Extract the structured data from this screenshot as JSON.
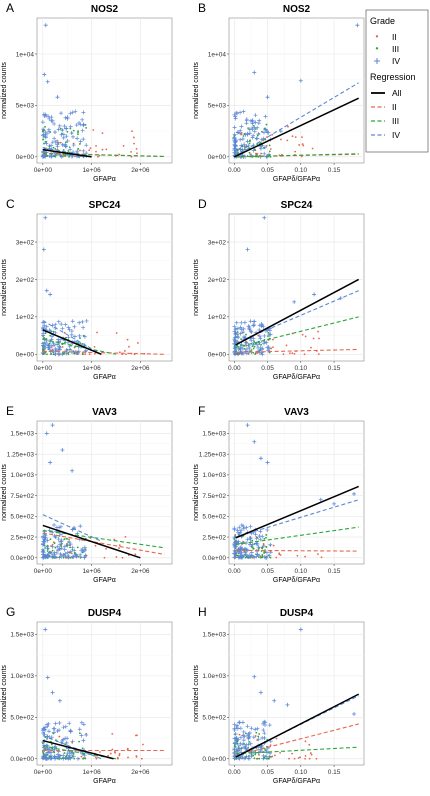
{
  "colors": {
    "II": "#e8664f",
    "III": "#2aa63a",
    "IV": "#5b87d6",
    "All": "#000000",
    "grid": "#e6e6e6",
    "frame": "#8c8c8c"
  },
  "legend": {
    "grade_title": "Grade",
    "grades": [
      "II",
      "III",
      "IV"
    ],
    "regression_title": "Regression",
    "regressions": [
      "All",
      "II",
      "III",
      "IV"
    ]
  },
  "chart_data": [
    {
      "letter": "A",
      "title": "NOS2",
      "type": "scatter",
      "xlabel": "GFAPα",
      "ylabel": "normalized counts",
      "xlim": [
        -120000,
        2650000
      ],
      "ylim": [
        -600,
        13500
      ],
      "xticks": [
        0,
        1000000,
        2000000
      ],
      "xtick_labels": [
        "0e+00",
        "1e+06",
        "2e+06"
      ],
      "yticks": [
        0,
        5000,
        10000
      ],
      "ytick_labels": [
        "0e+00",
        "5e+03",
        "1e+04"
      ],
      "regression": {
        "All": [
          [
            0,
            700
          ],
          [
            1000000,
            0
          ]
        ],
        "II": [
          [
            0,
            350
          ],
          [
            2500000,
            30
          ]
        ],
        "III": [
          [
            0,
            300
          ],
          [
            2500000,
            40
          ]
        ],
        "IV": [
          [
            0,
            900
          ],
          [
            1000000,
            0
          ]
        ]
      },
      "outliers_IV": [
        [
          60000,
          12800
        ],
        [
          30000,
          8000
        ],
        [
          100000,
          7300
        ],
        [
          300000,
          5800
        ],
        [
          180000,
          3500
        ],
        [
          50000,
          4100
        ],
        [
          250000,
          2400
        ]
      ]
    },
    {
      "letter": "B",
      "title": "NOS2",
      "type": "scatter",
      "xlabel": "GFAPδ/GFAPα",
      "ylabel": "normalized counts",
      "xlim": [
        -0.008,
        0.195
      ],
      "ylim": [
        -600,
        13500
      ],
      "xticks": [
        0,
        0.05,
        0.1,
        0.15
      ],
      "xtick_labels": [
        "0.00",
        "0.05",
        "0.10",
        "0.15"
      ],
      "yticks": [
        0,
        5000,
        10000
      ],
      "ytick_labels": [
        "0e+00",
        "5e+03",
        "1e+04"
      ],
      "regression": {
        "All": [
          [
            0,
            0
          ],
          [
            0.187,
            5700
          ]
        ],
        "II": [
          [
            0,
            0
          ],
          [
            0.187,
            250
          ]
        ],
        "III": [
          [
            0,
            0
          ],
          [
            0.187,
            300
          ]
        ],
        "IV": [
          [
            0,
            0
          ],
          [
            0.187,
            7200
          ]
        ]
      },
      "outliers_IV": [
        [
          0.185,
          12800
        ],
        [
          0.03,
          8200
        ],
        [
          0.1,
          7400
        ],
        [
          0.05,
          5800
        ],
        [
          0.025,
          3500
        ],
        [
          0.07,
          2500
        ],
        [
          0.02,
          1500
        ]
      ]
    },
    {
      "letter": "C",
      "title": "SPC24",
      "type": "scatter",
      "xlabel": "GFAPα",
      "ylabel": "normalized counts",
      "xlim": [
        -120000,
        2650000
      ],
      "ylim": [
        -18,
        375
      ],
      "xticks": [
        0,
        1000000,
        2000000
      ],
      "xtick_labels": [
        "0e+00",
        "1e+06",
        "2e+06"
      ],
      "yticks": [
        0,
        100,
        200,
        300
      ],
      "ytick_labels": [
        "0e+00",
        "1e+02",
        "2e+02",
        "3e+02"
      ],
      "regression": {
        "All": [
          [
            0,
            65
          ],
          [
            1200000,
            0
          ]
        ],
        "II": [
          [
            0,
            8
          ],
          [
            2500000,
            0
          ]
        ],
        "III": [
          [
            0,
            40
          ],
          [
            1500000,
            0
          ]
        ],
        "IV": [
          [
            0,
            90
          ],
          [
            1200000,
            0
          ]
        ]
      },
      "outliers_IV": [
        [
          50000,
          365
        ],
        [
          20000,
          280
        ],
        [
          80000,
          170
        ],
        [
          150000,
          160
        ]
      ]
    },
    {
      "letter": "D",
      "title": "SPC24",
      "type": "scatter",
      "xlabel": "GFAPδ/GFAPα",
      "ylabel": "normalized counts",
      "xlim": [
        -0.008,
        0.195
      ],
      "ylim": [
        -18,
        375
      ],
      "xticks": [
        0,
        0.05,
        0.1,
        0.15
      ],
      "xtick_labels": [
        "0.00",
        "0.05",
        "0.10",
        "0.15"
      ],
      "yticks": [
        0,
        100,
        200,
        300
      ],
      "ytick_labels": [
        "0e+00",
        "1e+02",
        "2e+02",
        "3e+02"
      ],
      "regression": {
        "All": [
          [
            0.002,
            25
          ],
          [
            0.187,
            200
          ]
        ],
        "II": [
          [
            0.002,
            5
          ],
          [
            0.187,
            13
          ]
        ],
        "III": [
          [
            0.002,
            18
          ],
          [
            0.187,
            100
          ]
        ],
        "IV": [
          [
            0.002,
            30
          ],
          [
            0.187,
            170
          ]
        ]
      },
      "outliers_IV": [
        [
          0.045,
          365
        ],
        [
          0.02,
          280
        ],
        [
          0.12,
          160
        ],
        [
          0.16,
          150
        ],
        [
          0.09,
          140
        ]
      ]
    },
    {
      "letter": "E",
      "title": "VAV3",
      "type": "scatter",
      "xlabel": "GFAPα",
      "ylabel": "normalized counts",
      "xlim": [
        -120000,
        2650000
      ],
      "ylim": [
        -75,
        1650
      ],
      "xticks": [
        0,
        1000000,
        2000000
      ],
      "xtick_labels": [
        "0e+00",
        "1e+06",
        "2e+06"
      ],
      "yticks": [
        0,
        250,
        500,
        750,
        1000,
        1250,
        1500
      ],
      "ytick_labels": [
        "0.0e+00",
        "2.5e+02",
        "5.0e+02",
        "7.5e+02",
        "1.0e+03",
        "1.25e+03",
        "1.5e+03"
      ],
      "regression": {
        "All": [
          [
            0,
            390
          ],
          [
            2000000,
            0
          ]
        ],
        "II": [
          [
            0,
            300
          ],
          [
            2500000,
            40
          ]
        ],
        "III": [
          [
            0,
            330
          ],
          [
            2500000,
            120
          ]
        ],
        "IV": [
          [
            0,
            520
          ],
          [
            1200000,
            200
          ]
        ]
      },
      "outliers_IV": [
        [
          200000,
          1600
        ],
        [
          80000,
          1500
        ],
        [
          400000,
          1300
        ],
        [
          150000,
          1150
        ],
        [
          600000,
          1050
        ]
      ]
    },
    {
      "letter": "F",
      "title": "VAV3",
      "type": "scatter",
      "xlabel": "GFAPδ/GFAPα",
      "ylabel": "normalized counts",
      "xlim": [
        -0.008,
        0.195
      ],
      "ylim": [
        -75,
        1650
      ],
      "xticks": [
        0,
        0.05,
        0.1,
        0.15
      ],
      "xtick_labels": [
        "0.00",
        "0.05",
        "0.10",
        "0.15"
      ],
      "yticks": [
        0,
        250,
        500,
        750,
        1000,
        1250,
        1500
      ],
      "ytick_labels": [
        "0.0e+00",
        "2.5e+02",
        "5.0e+02",
        "7.5e+02",
        "1.0e+03",
        "1.25e+03",
        "1.5e+03"
      ],
      "regression": {
        "All": [
          [
            0.002,
            240
          ],
          [
            0.187,
            860
          ]
        ],
        "II": [
          [
            0.002,
            90
          ],
          [
            0.187,
            80
          ]
        ],
        "III": [
          [
            0.002,
            160
          ],
          [
            0.187,
            370
          ]
        ],
        "IV": [
          [
            0.002,
            250
          ],
          [
            0.187,
            700
          ]
        ]
      },
      "outliers_IV": [
        [
          0.02,
          1600
        ],
        [
          0.03,
          1400
        ],
        [
          0.04,
          1200
        ],
        [
          0.05,
          1150
        ],
        [
          0.18,
          770
        ],
        [
          0.13,
          700
        ],
        [
          0.15,
          650
        ]
      ]
    },
    {
      "letter": "G",
      "title": "DUSP4",
      "type": "scatter",
      "xlabel": "GFAPα",
      "ylabel": "normalized counts",
      "xlim": [
        -120000,
        2650000
      ],
      "ylim": [
        -75,
        1650
      ],
      "xticks": [
        0,
        1000000,
        2000000
      ],
      "xtick_labels": [
        "0e+00",
        "1e+06",
        "2e+06"
      ],
      "yticks": [
        0,
        500,
        1000,
        1500
      ],
      "ytick_labels": [
        "0.0e+00",
        "5.0e+02",
        "1.0e+03",
        "1.5e+03"
      ],
      "regression": {
        "All": [
          [
            0,
            220
          ],
          [
            1450000,
            0
          ]
        ],
        "II": [
          [
            0,
            100
          ],
          [
            2500000,
            100
          ]
        ],
        "III": [
          [
            0,
            150
          ],
          [
            1500000,
            0
          ]
        ],
        "IV": [
          [
            0,
            280
          ],
          [
            1200000,
            0
          ]
        ]
      },
      "outliers_IV": [
        [
          50000,
          1560
        ],
        [
          100000,
          980
        ],
        [
          200000,
          800
        ],
        [
          350000,
          700
        ]
      ]
    },
    {
      "letter": "H",
      "title": "DUSP4",
      "type": "scatter",
      "xlabel": "GFAPδ/GFAPα",
      "ylabel": "normalized counts",
      "xlim": [
        -0.008,
        0.195
      ],
      "ylim": [
        -75,
        1650
      ],
      "xticks": [
        0,
        0.05,
        0.1,
        0.15
      ],
      "xtick_labels": [
        "0.00",
        "0.05",
        "0.10",
        "0.15"
      ],
      "yticks": [
        0,
        500,
        1000,
        1500
      ],
      "ytick_labels": [
        "0.0e+00",
        "5.0e+02",
        "1.0e+03",
        "1.5e+03"
      ],
      "regression": {
        "All": [
          [
            0.002,
            20
          ],
          [
            0.187,
            780
          ]
        ],
        "II": [
          [
            0.002,
            40
          ],
          [
            0.187,
            420
          ]
        ],
        "III": [
          [
            0.002,
            60
          ],
          [
            0.187,
            140
          ]
        ],
        "IV": [
          [
            0.002,
            30
          ],
          [
            0.187,
            760
          ]
        ]
      },
      "outliers_IV": [
        [
          0.1,
          1560
        ],
        [
          0.03,
          990
        ],
        [
          0.04,
          800
        ],
        [
          0.06,
          700
        ],
        [
          0.08,
          650
        ],
        [
          0.18,
          540
        ]
      ]
    }
  ]
}
